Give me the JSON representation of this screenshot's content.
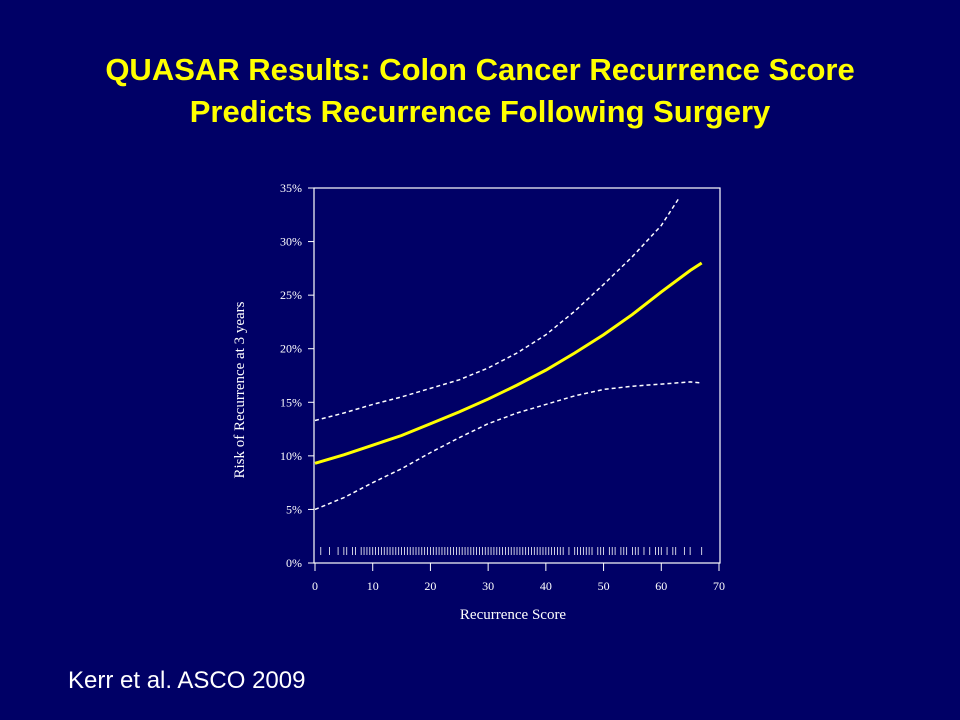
{
  "title": "QUASAR Results: Colon Cancer Recurrence Score",
  "subtitle": "Predicts Recurrence Following Surgery",
  "citation": "Kerr et al. ASCO 2009",
  "chart_data": {
    "type": "line",
    "x_label": "Recurrence Score",
    "y_label": "Risk of Recurrence at 3 years",
    "xlim": [
      0,
      70
    ],
    "xticks": [
      0,
      10,
      20,
      30,
      40,
      50,
      60,
      70
    ],
    "ylim": [
      0,
      35
    ],
    "yticks": [
      {
        "value": 0,
        "label": "0%"
      },
      {
        "value": 5,
        "label": "5%"
      },
      {
        "value": 10,
        "label": "10%"
      },
      {
        "value": 15,
        "label": "15%"
      },
      {
        "value": 20,
        "label": "20%"
      },
      {
        "value": 25,
        "label": "25%"
      },
      {
        "value": 30,
        "label": "30%"
      },
      {
        "value": 35,
        "label": "35%"
      }
    ],
    "series": [
      {
        "color": "#ffff00",
        "style": "solid",
        "x": [
          0,
          5,
          10,
          15,
          20,
          25,
          30,
          35,
          40,
          45,
          50,
          55,
          60,
          65,
          67
        ],
        "values": [
          9.3,
          10.1,
          11,
          11.9,
          13,
          14.1,
          15.3,
          16.6,
          18,
          19.6,
          21.3,
          23.2,
          25.3,
          27.3,
          28
        ]
      },
      {
        "color": "#ffffff",
        "style": "dashed",
        "x": [
          0,
          5,
          10,
          15,
          20,
          25,
          30,
          35,
          40,
          45,
          50,
          55,
          60,
          63
        ],
        "values": [
          13.3,
          14,
          14.8,
          15.5,
          16.3,
          17.1,
          18.2,
          19.6,
          21.3,
          23.5,
          26,
          28.6,
          31.5,
          34
        ]
      },
      {
        "color": "#ffffff",
        "style": "dashed",
        "x": [
          0,
          5,
          10,
          15,
          20,
          25,
          30,
          35,
          40,
          45,
          50,
          55,
          60,
          65,
          67
        ],
        "values": [
          5,
          6.1,
          7.5,
          8.8,
          10.3,
          11.7,
          13,
          14,
          14.8,
          15.6,
          16.2,
          16.5,
          16.7,
          16.9,
          16.8
        ]
      }
    ],
    "rug": [
      1,
      2.5,
      4,
      5,
      5.5,
      6.5,
      7,
      8,
      8.5,
      9,
      9.5,
      10,
      10.5,
      11,
      11.5,
      12,
      12.5,
      13,
      13.5,
      14,
      14.5,
      15,
      15.5,
      16,
      16.5,
      17,
      17.5,
      18,
      18.5,
      19,
      19.5,
      20,
      20.5,
      21,
      21.5,
      22,
      22.5,
      23,
      23.5,
      24,
      24.5,
      25,
      25.5,
      26,
      26.5,
      27,
      27.5,
      28,
      28.5,
      29,
      29.5,
      30,
      30.5,
      31,
      31.5,
      32,
      32.5,
      33,
      33.5,
      34,
      34.5,
      35,
      35.5,
      36,
      36.5,
      37,
      37.5,
      38,
      38.5,
      39,
      39.5,
      40,
      40.5,
      41,
      41.5,
      42,
      42.5,
      43,
      44,
      45,
      45.5,
      46,
      46.5,
      47,
      47.5,
      48,
      49,
      49.5,
      50,
      51,
      51.5,
      52,
      53,
      53.5,
      54,
      55,
      55.5,
      56,
      57,
      58,
      59,
      59.5,
      60,
      61,
      62,
      62.5,
      64,
      65,
      67
    ]
  }
}
